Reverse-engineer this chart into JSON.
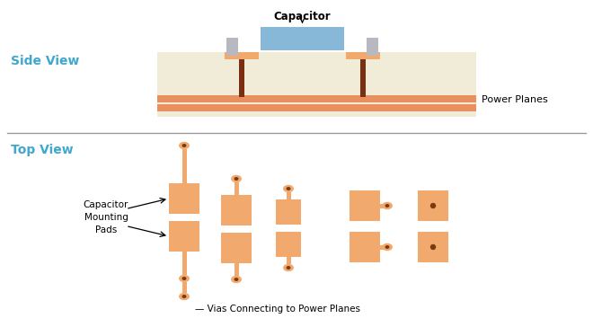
{
  "fig_width": 6.6,
  "fig_height": 3.64,
  "dpi": 100,
  "bg_color": "#ffffff",
  "pad_color": "#F2A96E",
  "board_color": "#F0ECD8",
  "plane_color": "#E89060",
  "via_color": "#F2A96E",
  "via_dot_color": "#7A3A10",
  "cap_body_color": "#88B8D8",
  "cap_lead_color": "#B8B8C0",
  "via_post_color": "#7A3010",
  "label_color_blue": "#40A8CC",
  "side_view_label": "Side View",
  "top_view_label": "Top View",
  "capacitor_label": "Capacitor",
  "power_planes_label": "Power Planes",
  "cap_mounting_pads_label": "Capacitor\nMounting\nPads",
  "vias_label": "— Vias Connecting to Power Planes"
}
